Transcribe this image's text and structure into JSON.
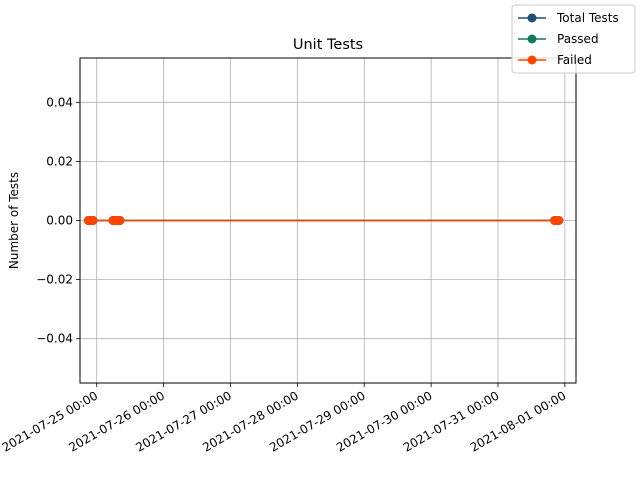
{
  "chart_data": {
    "type": "line",
    "title": "Unit Tests",
    "xlabel": "",
    "ylabel": "Number of Tests",
    "ylim": [
      -0.055,
      0.055
    ],
    "xlim": [
      "2021-07-24 18:00",
      "2021-08-01 04:00"
    ],
    "y_ticks": [
      0.04,
      0.02,
      0.0,
      -0.02,
      -0.04
    ],
    "y_tick_labels": [
      "0.04",
      "0.02",
      "0.00",
      "−0.02",
      "−0.04"
    ],
    "x_ticks": [
      "2021-07-25 00:00",
      "2021-07-26 00:00",
      "2021-07-27 00:00",
      "2021-07-28 00:00",
      "2021-07-29 00:00",
      "2021-07-30 00:00",
      "2021-07-31 00:00",
      "2021-08-01 00:00"
    ],
    "grid": true,
    "legend_position": "top-right",
    "x": [
      "2021-07-24 21:00",
      "2021-07-24 21:20",
      "2021-07-24 21:40",
      "2021-07-24 22:10",
      "2021-07-24 22:40",
      "2021-07-25 05:50",
      "2021-07-25 06:20",
      "2021-07-25 06:50",
      "2021-07-25 07:20",
      "2021-07-25 07:50",
      "2021-07-25 08:20",
      "2021-07-31 20:20",
      "2021-07-31 20:50",
      "2021-07-31 21:20",
      "2021-07-31 21:50"
    ],
    "series": [
      {
        "name": "Total Tests",
        "color": "#1f4e79",
        "values": [
          0,
          0,
          0,
          0,
          0,
          0,
          0,
          0,
          0,
          0,
          0,
          0,
          0,
          0,
          0
        ]
      },
      {
        "name": "Passed",
        "color": "#0f7b5c",
        "values": [
          0,
          0,
          0,
          0,
          0,
          0,
          0,
          0,
          0,
          0,
          0,
          0,
          0,
          0,
          0
        ]
      },
      {
        "name": "Failed",
        "color": "#ff4500",
        "values": [
          0,
          0,
          0,
          0,
          0,
          0,
          0,
          0,
          0,
          0,
          0,
          0,
          0,
          0,
          0
        ]
      }
    ]
  }
}
